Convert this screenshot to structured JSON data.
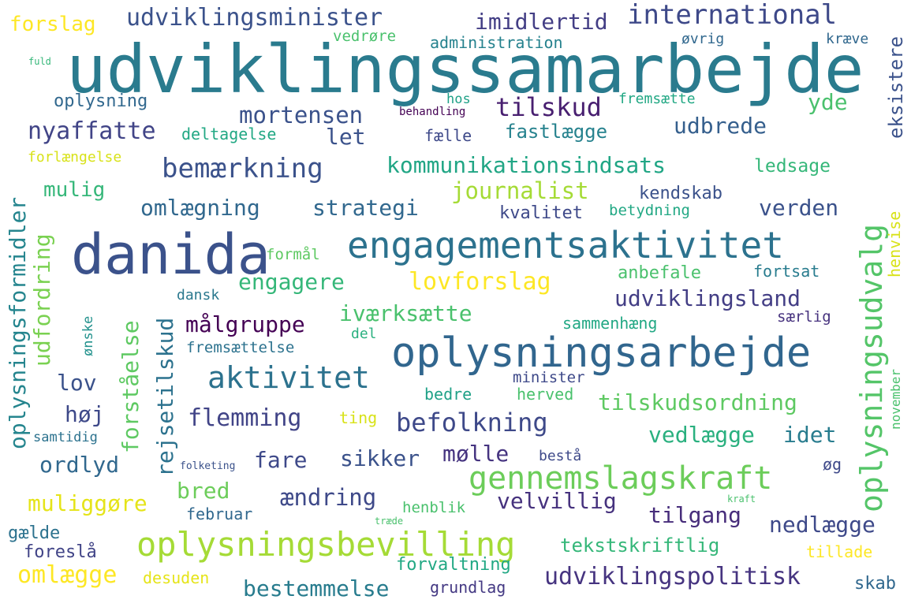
{
  "words": [
    {
      "text": "udviklingssamarbejde",
      "color": "#2a7b8e"
    },
    {
      "text": "danida",
      "color": "#3b528b"
    },
    {
      "text": "oplysningsarbejde",
      "color": "#31668e"
    },
    {
      "text": "engagementsaktivitet",
      "color": "#2c728e"
    },
    {
      "text": "oplysningsbevilling",
      "color": "#a5db36"
    },
    {
      "text": "gennemslagskraft",
      "color": "#6ccd5a"
    },
    {
      "text": "oplysningsudvalg",
      "color": "#54c568"
    },
    {
      "text": "oplysningsformidler",
      "color": "#25858e"
    },
    {
      "text": "international",
      "color": "#3e4989"
    },
    {
      "text": "udviklingsminister",
      "color": "#3b528b"
    },
    {
      "text": "imidlertid",
      "color": "#433e85"
    },
    {
      "text": "tilskud",
      "color": "#481f70"
    },
    {
      "text": "mortensen",
      "color": "#3b528b"
    },
    {
      "text": "nyaffatte",
      "color": "#414487"
    },
    {
      "text": "bemærkning",
      "color": "#3b528b"
    },
    {
      "text": "kommunikationsindsats",
      "color": "#21a685"
    },
    {
      "text": "journalist",
      "color": "#a5db36"
    },
    {
      "text": "omlægning",
      "color": "#31688e"
    },
    {
      "text": "strategi",
      "color": "#31688e"
    },
    {
      "text": "udbrede",
      "color": "#355f8d"
    },
    {
      "text": "verden",
      "color": "#3b528b"
    },
    {
      "text": "lovforslag",
      "color": "#fde725"
    },
    {
      "text": "udviklingsland",
      "color": "#433e85"
    },
    {
      "text": "engagere",
      "color": "#35b779"
    },
    {
      "text": "iværksætte",
      "color": "#4ac16d"
    },
    {
      "text": "målgruppe",
      "color": "#440154"
    },
    {
      "text": "aktivitet",
      "color": "#2c728e"
    },
    {
      "text": "flemming",
      "color": "#414487"
    },
    {
      "text": "befolkning",
      "color": "#3e4989"
    },
    {
      "text": "tilskudsordning",
      "color": "#5ec962"
    },
    {
      "text": "vedlægge",
      "color": "#2ab07f"
    },
    {
      "text": "idet",
      "color": "#287c8e"
    },
    {
      "text": "mølle",
      "color": "#463480"
    },
    {
      "text": "sikker",
      "color": "#3b528b"
    },
    {
      "text": "fare",
      "color": "#3e4989"
    },
    {
      "text": "ordlyd",
      "color": "#31688e"
    },
    {
      "text": "ændring",
      "color": "#3e4989"
    },
    {
      "text": "velvillig",
      "color": "#46327e"
    },
    {
      "text": "tilgang",
      "color": "#472d7b"
    },
    {
      "text": "nedlægge",
      "color": "#3e4989"
    },
    {
      "text": "udviklingspolitisk",
      "color": "#463480"
    },
    {
      "text": "bestemmelse",
      "color": "#287c8e"
    },
    {
      "text": "muliggøre",
      "color": "#e5e419"
    },
    {
      "text": "omlægge",
      "color": "#fde725"
    },
    {
      "text": "bred",
      "color": "#6ccd5a"
    },
    {
      "text": "forståelse",
      "color": "#5ec962"
    },
    {
      "text": "rejsetilskud",
      "color": "#2c728e"
    },
    {
      "text": "udfordring",
      "color": "#7ad151"
    },
    {
      "text": "forslag",
      "color": "#fde725"
    },
    {
      "text": "vedrøre",
      "color": "#4ac16d"
    },
    {
      "text": "administration",
      "color": "#26828e"
    },
    {
      "text": "øvrig",
      "color": "#31688e"
    },
    {
      "text": "kræve",
      "color": "#31688e"
    },
    {
      "text": "eksistere",
      "color": "#3b528b"
    },
    {
      "text": "fuld",
      "color": "#35b779"
    },
    {
      "text": "oplysning",
      "color": "#31688e"
    },
    {
      "text": "hos",
      "color": "#1fa187"
    },
    {
      "text": "behandling",
      "color": "#440154"
    },
    {
      "text": "fremsætte",
      "color": "#22a884"
    },
    {
      "text": "yde",
      "color": "#4ac16d"
    },
    {
      "text": "let",
      "color": "#3b528b"
    },
    {
      "text": "deltagelse",
      "color": "#22a884"
    },
    {
      "text": "fælle",
      "color": "#3e4989"
    },
    {
      "text": "fastlægge",
      "color": "#26828e"
    },
    {
      "text": "forlængelse",
      "color": "#d8e219"
    },
    {
      "text": "ledsage",
      "color": "#35b779"
    },
    {
      "text": "mulig",
      "color": "#35b779"
    },
    {
      "text": "kendskab",
      "color": "#3b528b"
    },
    {
      "text": "kvalitet",
      "color": "#3e4989"
    },
    {
      "text": "betydning",
      "color": "#22a884"
    },
    {
      "text": "formål",
      "color": "#5ec962"
    },
    {
      "text": "anbefale",
      "color": "#4ac16d"
    },
    {
      "text": "fortsat",
      "color": "#287c8e"
    },
    {
      "text": "henvise",
      "color": "#d8e219"
    },
    {
      "text": "dansk",
      "color": "#2a788e"
    },
    {
      "text": "sammenhæng",
      "color": "#22a884"
    },
    {
      "text": "særlig",
      "color": "#46327e"
    },
    {
      "text": "ønske",
      "color": "#21918c"
    },
    {
      "text": "fremsættelse",
      "color": "#2c728e"
    },
    {
      "text": "del",
      "color": "#2ab07f"
    },
    {
      "text": "minister",
      "color": "#3e4989"
    },
    {
      "text": "lov",
      "color": "#3b528b"
    },
    {
      "text": "høj",
      "color": "#3e4989"
    },
    {
      "text": "bedre",
      "color": "#1fa187"
    },
    {
      "text": "herved",
      "color": "#4ac16d"
    },
    {
      "text": "november",
      "color": "#4ac16d"
    },
    {
      "text": "ting",
      "color": "#d8e219"
    },
    {
      "text": "samtidig",
      "color": "#2c728e"
    },
    {
      "text": "folketing",
      "color": "#3b528b"
    },
    {
      "text": "bestå",
      "color": "#3e4989"
    },
    {
      "text": "øg",
      "color": "#3e4989"
    },
    {
      "text": "kraft",
      "color": "#4ac16d"
    },
    {
      "text": "henblik",
      "color": "#4ac16d"
    },
    {
      "text": "februar",
      "color": "#31688e"
    },
    {
      "text": "træde",
      "color": "#4ac16d"
    },
    {
      "text": "gælde",
      "color": "#2c728e"
    },
    {
      "text": "foreslå",
      "color": "#414487"
    },
    {
      "text": "tekstskriftlig",
      "color": "#35b779"
    },
    {
      "text": "tillade",
      "color": "#fde725"
    },
    {
      "text": "forvaltning",
      "color": "#22a884"
    },
    {
      "text": "desuden",
      "color": "#e5e419"
    },
    {
      "text": "grundlag",
      "color": "#443983"
    },
    {
      "text": "skab",
      "color": "#31688e"
    }
  ]
}
